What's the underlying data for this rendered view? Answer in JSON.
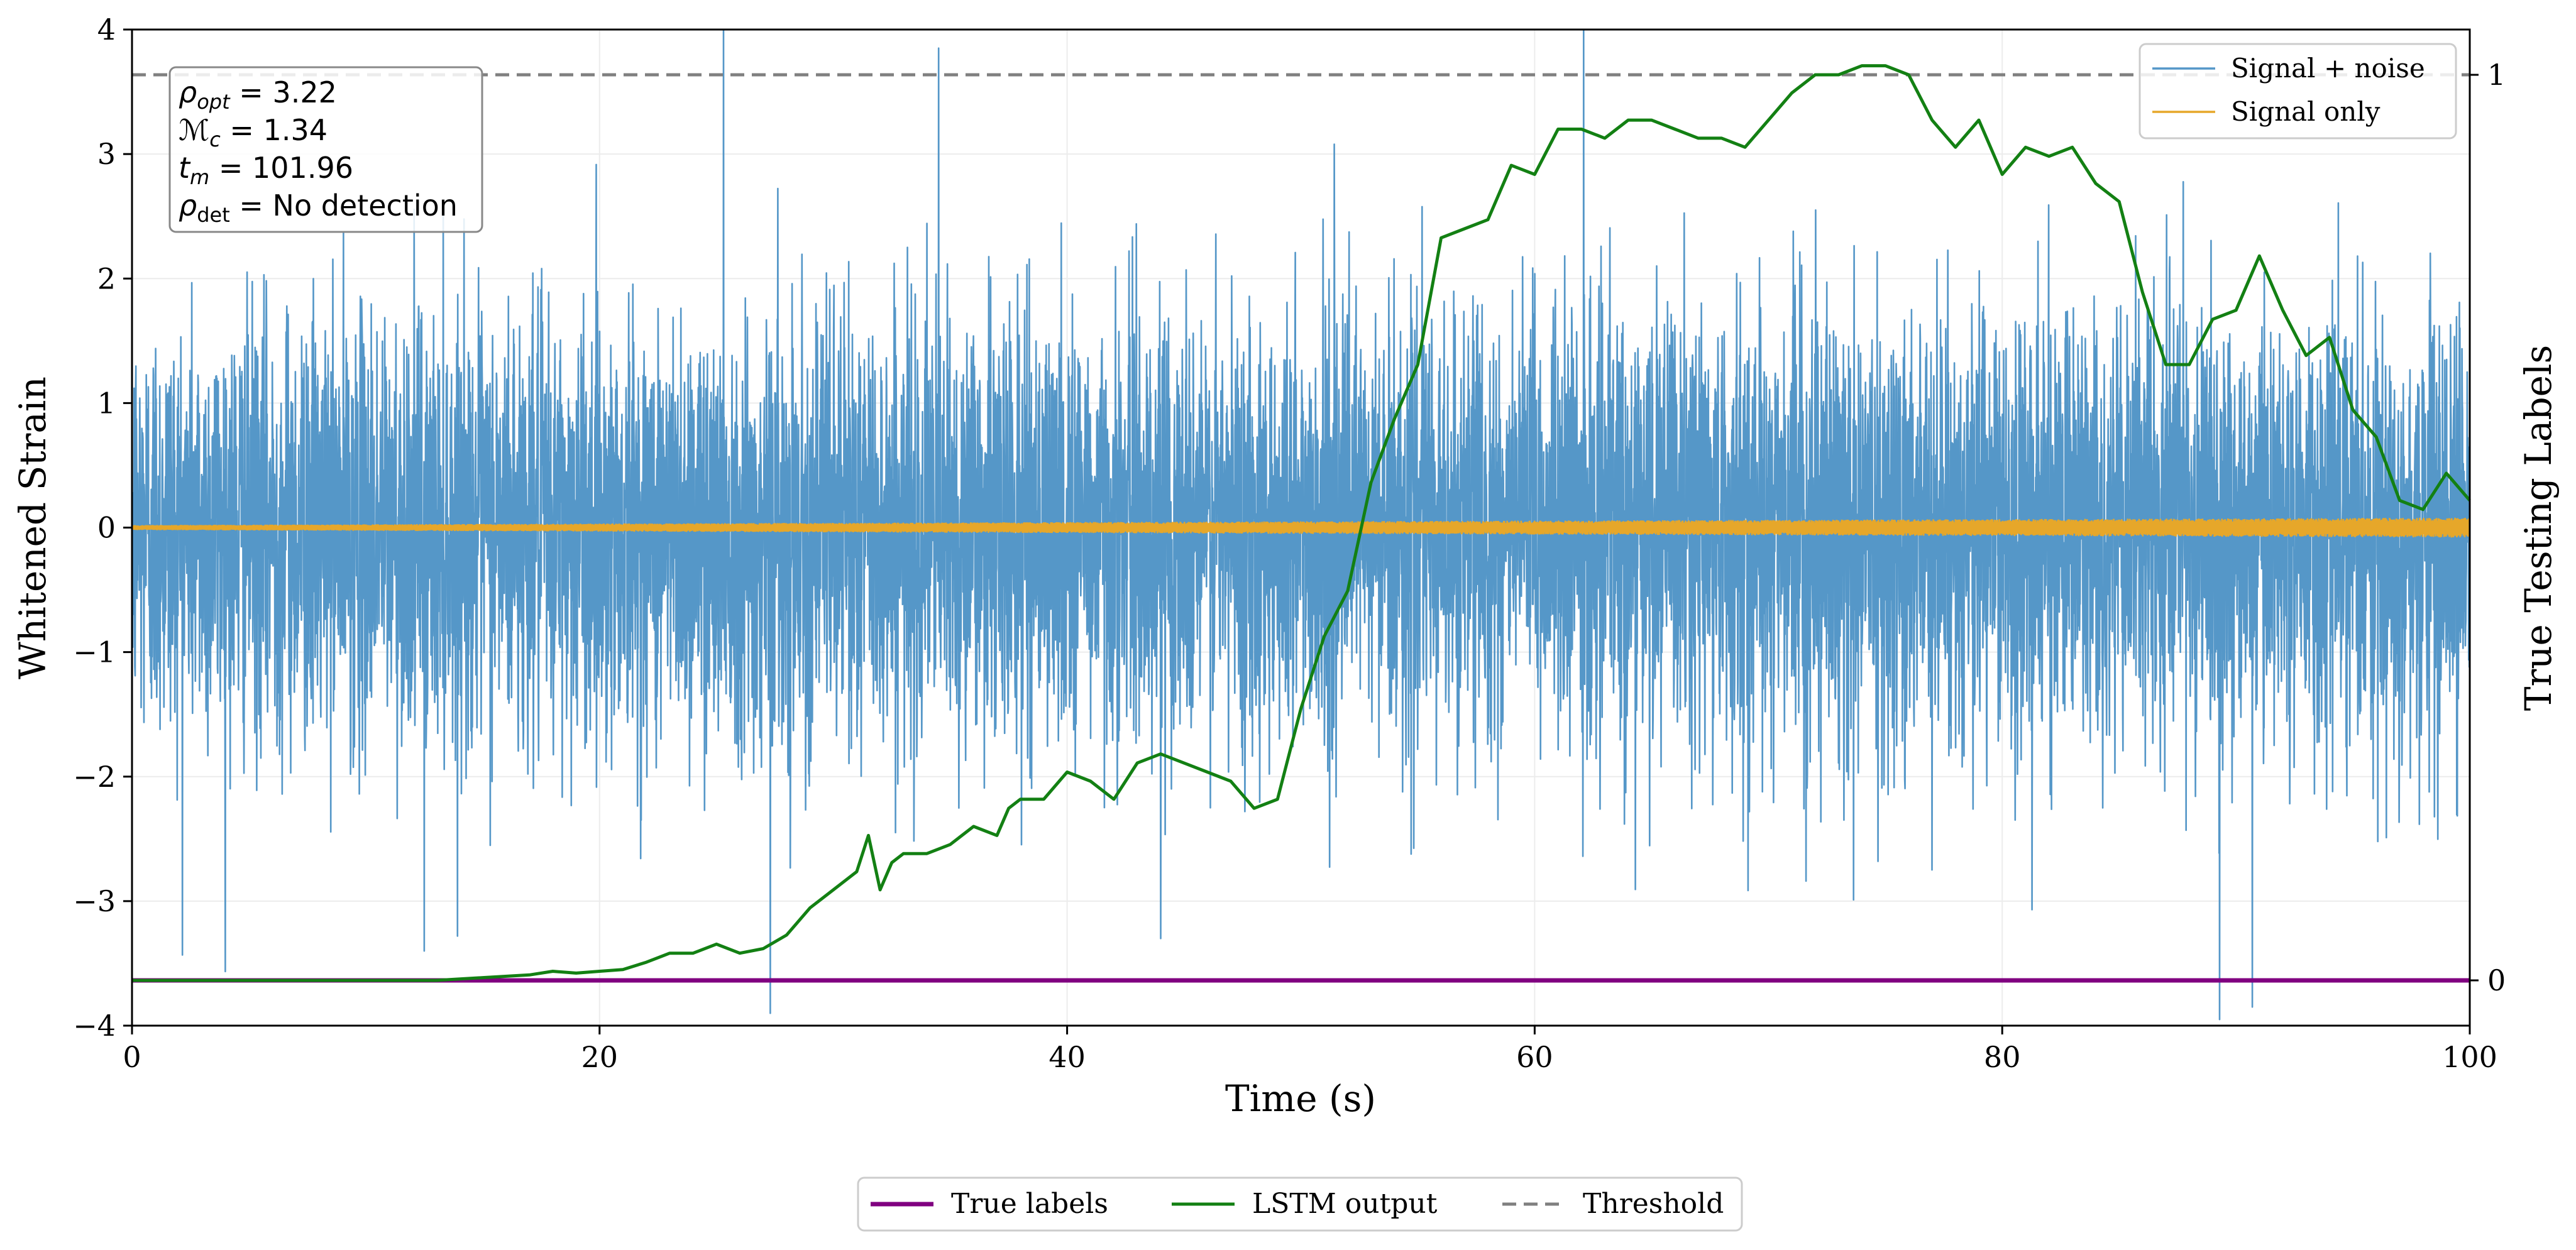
{
  "chart_data": {
    "type": "line",
    "xlabel": "Time (s)",
    "ylabel": "Whitened Strain",
    "y2label": "True Testing Labels",
    "xlim": [
      0,
      100
    ],
    "ylim": [
      -4,
      4
    ],
    "y2lim": [
      -0.05,
      1.05
    ],
    "x_ticks": [
      0,
      20,
      40,
      60,
      80,
      100
    ],
    "x_tick_labels": [
      "0",
      "20",
      "40",
      "60",
      "80",
      "100"
    ],
    "y_ticks": [
      -4,
      -3,
      -2,
      -1,
      0,
      1,
      2,
      3,
      4
    ],
    "y_tick_labels": [
      "−4",
      "−3",
      "−2",
      "−1",
      "0",
      "1",
      "2",
      "3",
      "4"
    ],
    "y2_ticks": [
      0,
      1
    ],
    "y2_tick_labels": [
      "0",
      "1"
    ],
    "grid": true,
    "legend_top": {
      "position": "top-right",
      "entries": [
        {
          "label": "Signal + noise",
          "color": "#5597c8"
        },
        {
          "label": "Signal only",
          "color": "#e6a72a"
        }
      ]
    },
    "legend_bottom": {
      "position": "bottom-center",
      "entries": [
        {
          "label": "True labels",
          "color": "#800080",
          "style": "solid"
        },
        {
          "label": "LSTM output",
          "color": "#138013",
          "style": "solid"
        },
        {
          "label": "Threshold",
          "color": "#808080",
          "style": "dashed"
        }
      ]
    },
    "annotation_box": {
      "position": "top-left",
      "lines": [
        {
          "sym": "ρ",
          "sub": "opt",
          "val": "3.22"
        },
        {
          "sym": "ℳ",
          "sub": "c",
          "val": "1.34"
        },
        {
          "sym": "t",
          "sub": "m",
          "val": "101.96"
        },
        {
          "sym": "ρ",
          "sub": "det",
          "val": "No detection",
          "upright_sub": true
        }
      ]
    },
    "series": [
      {
        "name": "Signal + noise",
        "axis": "left",
        "color": "#5597c8",
        "description": "whitened strain, approx. unit-variance noise sampled across 0–100 s",
        "std": 0.85,
        "spikes": [
          [
            25.3,
            4.0
          ],
          [
            27.3,
            -3.9
          ],
          [
            34.5,
            3.85
          ],
          [
            62.1,
            4.0
          ],
          [
            89.3,
            -3.95
          ],
          [
            90.7,
            -3.85
          ],
          [
            12.5,
            -3.4
          ],
          [
            44.0,
            -3.3
          ]
        ]
      },
      {
        "name": "Signal only",
        "axis": "left",
        "color": "#e6a72a",
        "description": "injected signal, amplitude growing from ~0.02 to ~0.08 over time",
        "amplitude_start": 0.02,
        "amplitude_end": 0.08
      },
      {
        "name": "True labels",
        "axis": "right",
        "color": "#800080",
        "x": [
          0,
          100
        ],
        "y": [
          0,
          0
        ]
      },
      {
        "name": "Threshold",
        "axis": "right",
        "color": "#808080",
        "x": [
          0,
          100
        ],
        "y": [
          1,
          1
        ]
      },
      {
        "name": "LSTM output",
        "axis": "right",
        "color": "#138013",
        "x": [
          0,
          5,
          10,
          13,
          15,
          17,
          18,
          19,
          20,
          21,
          22,
          23,
          24,
          25,
          26,
          27,
          28,
          29,
          30,
          31,
          31.5,
          32,
          32.5,
          33,
          34,
          35,
          36,
          37,
          37.5,
          38,
          39,
          40,
          41,
          42,
          43,
          44,
          45,
          46,
          47,
          48,
          49,
          50,
          51,
          52,
          53,
          54,
          55,
          56,
          57,
          58,
          59,
          60,
          61,
          62,
          63,
          64,
          65,
          66,
          67,
          68,
          69,
          70,
          71,
          72,
          73,
          74,
          75,
          76,
          77,
          78,
          79,
          80,
          81,
          82,
          83,
          84,
          85,
          86,
          87,
          88,
          89,
          90,
          91,
          92,
          93,
          94,
          95,
          96,
          97,
          98,
          99,
          100
        ],
        "y": [
          0,
          0,
          0,
          0,
          0.003,
          0.006,
          0.01,
          0.008,
          0.01,
          0.012,
          0.02,
          0.03,
          0.03,
          0.04,
          0.03,
          0.035,
          0.05,
          0.08,
          0.1,
          0.12,
          0.16,
          0.1,
          0.13,
          0.14,
          0.14,
          0.15,
          0.17,
          0.16,
          0.19,
          0.2,
          0.2,
          0.23,
          0.22,
          0.2,
          0.24,
          0.25,
          0.24,
          0.23,
          0.22,
          0.19,
          0.2,
          0.3,
          0.38,
          0.43,
          0.55,
          0.62,
          0.68,
          0.82,
          0.83,
          0.84,
          0.9,
          0.89,
          0.94,
          0.94,
          0.93,
          0.95,
          0.95,
          0.94,
          0.93,
          0.93,
          0.92,
          0.95,
          0.98,
          1.0,
          1.0,
          1.01,
          1.01,
          1.0,
          0.95,
          0.92,
          0.95,
          0.89,
          0.92,
          0.91,
          0.92,
          0.88,
          0.86,
          0.76,
          0.68,
          0.68,
          0.73,
          0.74,
          0.8,
          0.74,
          0.69,
          0.71,
          0.63,
          0.6,
          0.53,
          0.52,
          0.56,
          0.53
        ]
      }
    ]
  }
}
